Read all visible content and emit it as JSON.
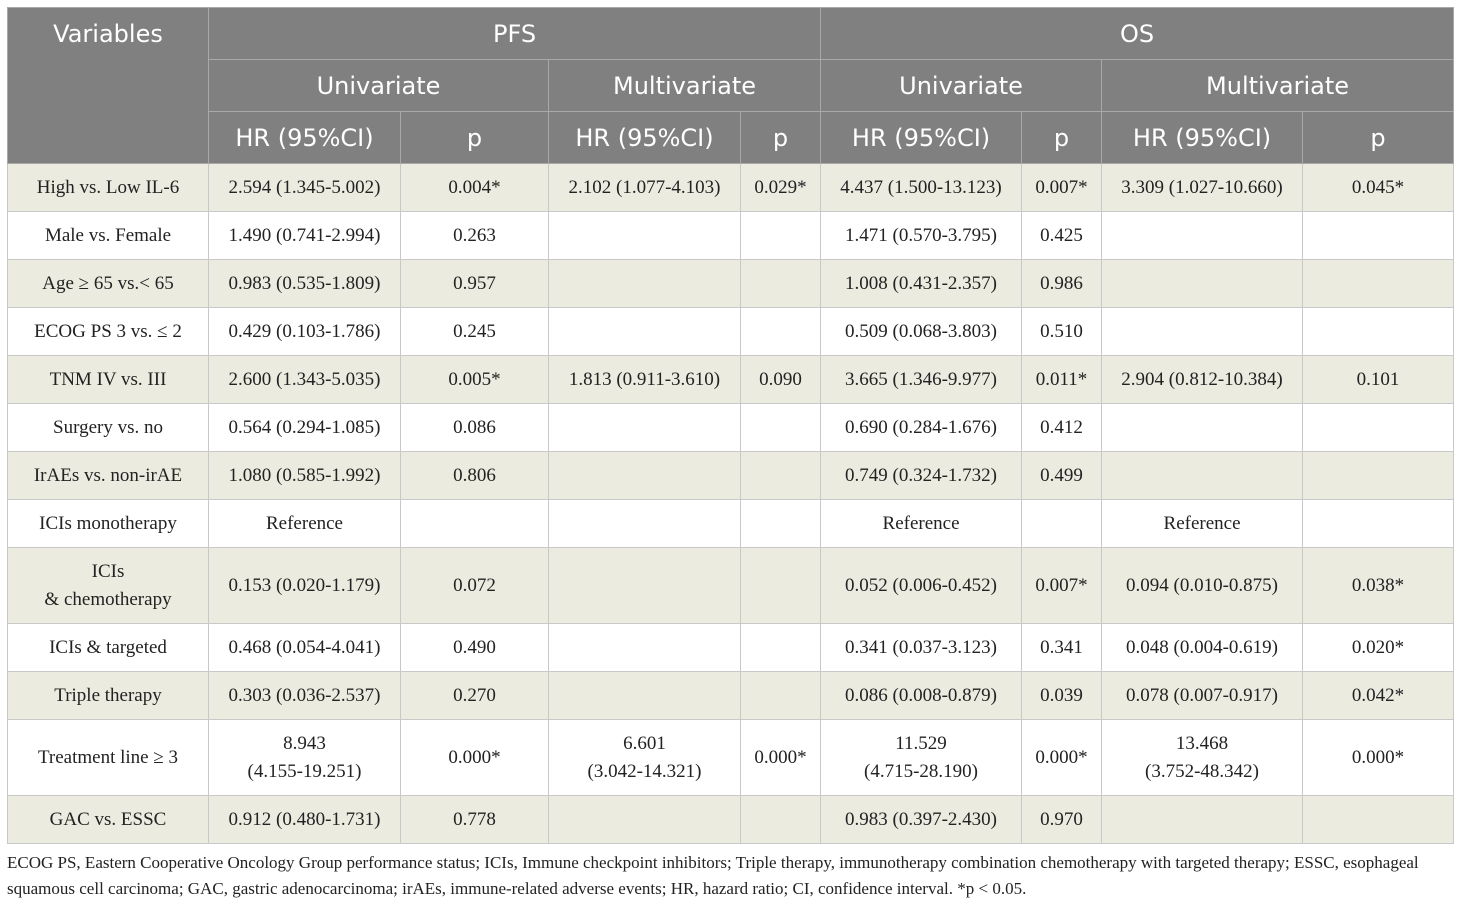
{
  "header": {
    "variables": "Variables",
    "pfs": "PFS",
    "os": "OS",
    "univariate": "Univariate",
    "multivariate": "Multivariate",
    "hr": "HR (95%CI)",
    "p": "p"
  },
  "rows": [
    {
      "variable": "High vs. Low IL-6",
      "pfs_uni_hr": "2.594 (1.345-5.002)",
      "pfs_uni_p": "0.004*",
      "pfs_multi_hr": "2.102 (1.077-4.103)",
      "pfs_multi_p": "0.029*",
      "os_uni_hr": "4.437 (1.500-13.123)",
      "os_uni_p": "0.007*",
      "os_multi_hr": "3.309 (1.027-10.660)",
      "os_multi_p": "0.045*"
    },
    {
      "variable": "Male vs. Female",
      "pfs_uni_hr": "1.490 (0.741-2.994)",
      "pfs_uni_p": "0.263",
      "pfs_multi_hr": "",
      "pfs_multi_p": "",
      "os_uni_hr": "1.471 (0.570-3.795)",
      "os_uni_p": "0.425",
      "os_multi_hr": "",
      "os_multi_p": ""
    },
    {
      "variable": "Age ≥ 65 vs.< 65",
      "pfs_uni_hr": "0.983 (0.535-1.809)",
      "pfs_uni_p": "0.957",
      "pfs_multi_hr": "",
      "pfs_multi_p": "",
      "os_uni_hr": "1.008 (0.431-2.357)",
      "os_uni_p": "0.986",
      "os_multi_hr": "",
      "os_multi_p": ""
    },
    {
      "variable": "ECOG PS 3 vs. ≤ 2",
      "pfs_uni_hr": "0.429 (0.103-1.786)",
      "pfs_uni_p": "0.245",
      "pfs_multi_hr": "",
      "pfs_multi_p": "",
      "os_uni_hr": "0.509 (0.068-3.803)",
      "os_uni_p": "0.510",
      "os_multi_hr": "",
      "os_multi_p": ""
    },
    {
      "variable": "TNM IV vs. III",
      "pfs_uni_hr": "2.600 (1.343-5.035)",
      "pfs_uni_p": "0.005*",
      "pfs_multi_hr": "1.813 (0.911-3.610)",
      "pfs_multi_p": "0.090",
      "os_uni_hr": "3.665 (1.346-9.977)",
      "os_uni_p": "0.011*",
      "os_multi_hr": "2.904 (0.812-10.384)",
      "os_multi_p": "0.101"
    },
    {
      "variable": "Surgery vs. no",
      "pfs_uni_hr": "0.564 (0.294-1.085)",
      "pfs_uni_p": "0.086",
      "pfs_multi_hr": "",
      "pfs_multi_p": "",
      "os_uni_hr": "0.690 (0.284-1.676)",
      "os_uni_p": "0.412",
      "os_multi_hr": "",
      "os_multi_p": ""
    },
    {
      "variable": "IrAEs vs. non-irAE",
      "pfs_uni_hr": "1.080 (0.585-1.992)",
      "pfs_uni_p": "0.806",
      "pfs_multi_hr": "",
      "pfs_multi_p": "",
      "os_uni_hr": "0.749 (0.324-1.732)",
      "os_uni_p": "0.499",
      "os_multi_hr": "",
      "os_multi_p": ""
    },
    {
      "variable": "ICIs monotherapy",
      "pfs_uni_hr": "Reference",
      "pfs_uni_p": "",
      "pfs_multi_hr": "",
      "pfs_multi_p": "",
      "os_uni_hr": "Reference",
      "os_uni_p": "",
      "os_multi_hr": "Reference",
      "os_multi_p": ""
    },
    {
      "variable": "ICIs\n& chemotherapy",
      "pfs_uni_hr": "0.153 (0.020-1.179)",
      "pfs_uni_p": "0.072",
      "pfs_multi_hr": "",
      "pfs_multi_p": "",
      "os_uni_hr": "0.052 (0.006-0.452)",
      "os_uni_p": "0.007*",
      "os_multi_hr": "0.094 (0.010-0.875)",
      "os_multi_p": "0.038*"
    },
    {
      "variable": "ICIs & targeted",
      "pfs_uni_hr": "0.468 (0.054-4.041)",
      "pfs_uni_p": "0.490",
      "pfs_multi_hr": "",
      "pfs_multi_p": "",
      "os_uni_hr": "0.341 (0.037-3.123)",
      "os_uni_p": "0.341",
      "os_multi_hr": "0.048 (0.004-0.619)",
      "os_multi_p": "0.020*"
    },
    {
      "variable": "Triple therapy",
      "pfs_uni_hr": "0.303 (0.036-2.537)",
      "pfs_uni_p": "0.270",
      "pfs_multi_hr": "",
      "pfs_multi_p": "",
      "os_uni_hr": "0.086 (0.008-0.879)",
      "os_uni_p": "0.039",
      "os_multi_hr": "0.078 (0.007-0.917)",
      "os_multi_p": "0.042*"
    },
    {
      "variable": "Treatment line ≥ 3",
      "pfs_uni_hr": "8.943\n(4.155-19.251)",
      "pfs_uni_p": "0.000*",
      "pfs_multi_hr": "6.601\n(3.042-14.321)",
      "pfs_multi_p": "0.000*",
      "os_uni_hr": "11.529\n(4.715-28.190)",
      "os_uni_p": "0.000*",
      "os_multi_hr": "13.468\n(3.752-48.342)",
      "os_multi_p": "0.000*"
    },
    {
      "variable": "GAC vs. ESSC",
      "pfs_uni_hr": "0.912 (0.480-1.731)",
      "pfs_uni_p": "0.778",
      "pfs_multi_hr": "",
      "pfs_multi_p": "",
      "os_uni_hr": "0.983 (0.397-2.430)",
      "os_uni_p": "0.970",
      "os_multi_hr": "",
      "os_multi_p": ""
    }
  ],
  "footnote": "ECOG PS, Eastern Cooperative Oncology Group performance status; ICIs, Immune checkpoint inhibitors; Triple therapy, immunotherapy combination chemotherapy with targeted therapy; ESSC, esophageal squamous cell carcinoma; GAC, gastric adenocarcinoma; irAEs, immune-related adverse events; HR, hazard ratio; CI, confidence interval. *p < 0.05."
}
